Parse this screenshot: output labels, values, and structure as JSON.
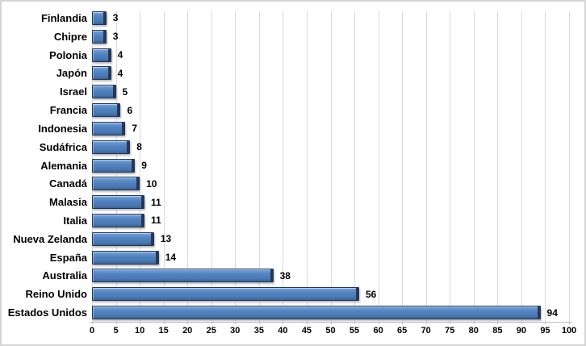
{
  "chart_data": {
    "type": "bar",
    "orientation": "horizontal",
    "title": "",
    "xlabel": "",
    "ylabel": "",
    "categories": [
      "Finlandia",
      "Chipre",
      "Polonia",
      "Japón",
      "Israel",
      "Francia",
      "Indonesia",
      "Sudáfrica",
      "Alemania",
      "Canadá",
      "Malasia",
      "Italia",
      "Nueva Zelanda",
      "España",
      "Australia",
      "Reino Unido",
      "Estados Unidos"
    ],
    "values": [
      3,
      3,
      4,
      4,
      5,
      6,
      7,
      8,
      9,
      10,
      11,
      11,
      13,
      14,
      38,
      56,
      94
    ],
    "data_labels": true,
    "xlim": [
      0,
      100
    ],
    "xticks": [
      0,
      5,
      10,
      15,
      20,
      25,
      30,
      35,
      40,
      45,
      50,
      55,
      60,
      65,
      70,
      75,
      80,
      85,
      90,
      95,
      100
    ],
    "grid": true,
    "legend": "none",
    "colors": {
      "bar_fill": "#4f81bd",
      "bar_border": "#20365c",
      "bar_edge_dark": "#25395c",
      "gridline": "#d9d9d9",
      "axis_line": "#bfbfbf",
      "text": "#000000",
      "background": "#ffffff",
      "frame_border": "#d4d4d4"
    }
  }
}
